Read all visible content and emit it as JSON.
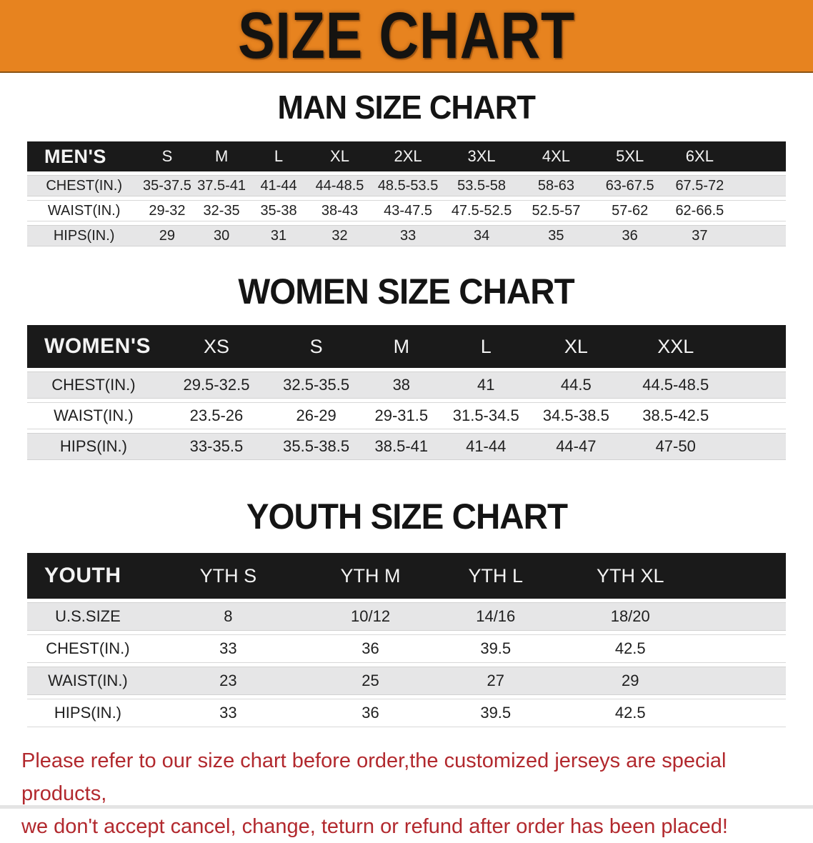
{
  "banner": {
    "title": "SIZE CHART",
    "bg_color": "#E7831F",
    "text_color": "#151310"
  },
  "sections": [
    {
      "heading": "MAN SIZE CHART",
      "table": {
        "header": {
          "label": "MEN'S",
          "sizes": [
            "S",
            "M",
            "L",
            "XL",
            "2XL",
            "3XL",
            "4XL",
            "5XL",
            "6XL"
          ]
        },
        "rows": [
          {
            "label": "CHEST(IN.)",
            "values": [
              "35-37.5",
              "37.5-41",
              "41-44",
              "44-48.5",
              "48.5-53.5",
              "53.5-58",
              "58-63",
              "63-67.5",
              "67.5-72"
            ]
          },
          {
            "label": "WAIST(IN.)",
            "values": [
              "29-32",
              "32-35",
              "35-38",
              "38-43",
              "43-47.5",
              "47.5-52.5",
              "52.5-57",
              "57-62",
              "62-66.5"
            ]
          },
          {
            "label": "HIPS(IN.)",
            "values": [
              "29",
              "30",
              "31",
              "32",
              "33",
              "34",
              "35",
              "36",
              "37"
            ]
          }
        ]
      }
    },
    {
      "heading": "WOMEN SIZE CHART",
      "table": {
        "header": {
          "label": "WOMEN'S",
          "sizes": [
            "XS",
            "S",
            "M",
            "L",
            "XL",
            "XXL"
          ]
        },
        "rows": [
          {
            "label": "CHEST(IN.)",
            "values": [
              "29.5-32.5",
              "32.5-35.5",
              "38",
              "41",
              "44.5",
              "44.5-48.5"
            ]
          },
          {
            "label": "WAIST(IN.)",
            "values": [
              "23.5-26",
              "26-29",
              "29-31.5",
              "31.5-34.5",
              "34.5-38.5",
              "38.5-42.5"
            ]
          },
          {
            "label": "HIPS(IN.)",
            "values": [
              "33-35.5",
              "35.5-38.5",
              "38.5-41",
              "41-44",
              "44-47",
              "47-50"
            ]
          }
        ]
      }
    },
    {
      "heading": "YOUTH SIZE CHART",
      "table": {
        "header": {
          "label": "YOUTH",
          "sizes": [
            "YTH S",
            "YTH M",
            "YTH L",
            "YTH XL"
          ]
        },
        "rows": [
          {
            "label": "U.S.SIZE",
            "values": [
              "8",
              "10/12",
              "14/16",
              "18/20"
            ]
          },
          {
            "label": "CHEST(IN.)",
            "values": [
              "33",
              "36",
              "39.5",
              "42.5"
            ]
          },
          {
            "label": "WAIST(IN.)",
            "values": [
              "23",
              "25",
              "27",
              "29"
            ]
          },
          {
            "label": "HIPS(IN.)",
            "values": [
              "33",
              "36",
              "39.5",
              "42.5"
            ]
          }
        ]
      }
    }
  ],
  "disclaimer": {
    "color": "#B2292E",
    "lines": [
      "Please refer to our size chart before order,the customized jerseys are special products,",
      "we don't accept cancel, change, teturn or refund after order has been placed!"
    ]
  }
}
